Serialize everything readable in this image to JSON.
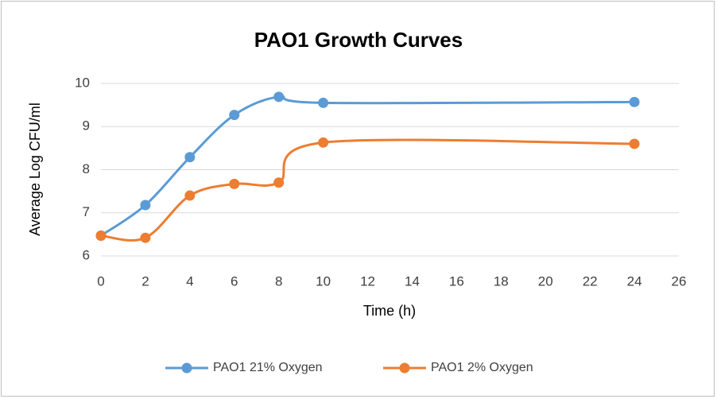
{
  "chart_data": {
    "type": "line",
    "title": "PAO1 Growth Curves",
    "xlabel": "Time (h)",
    "ylabel": "Average Log CFU/ml",
    "x": [
      0,
      2,
      4,
      6,
      8,
      10,
      24
    ],
    "series": [
      {
        "name": "PAO1 21% Oxygen",
        "color": "#5b9bd5",
        "values": [
          6.47,
          7.18,
          8.29,
          9.27,
          9.69,
          9.55,
          9.57
        ]
      },
      {
        "name": "PAO1 2% Oxygen",
        "color": "#ed7d31",
        "values": [
          6.47,
          6.42,
          7.4,
          7.67,
          7.7,
          8.63,
          8.6
        ]
      }
    ],
    "xlim": [
      0,
      26
    ],
    "xticks": [
      0,
      2,
      4,
      6,
      8,
      10,
      12,
      14,
      16,
      18,
      20,
      22,
      24,
      26
    ],
    "ylim": [
      6,
      10
    ],
    "yticks": [
      6,
      7,
      8,
      9,
      10
    ],
    "grid": true,
    "smooth": true,
    "legend": "bottom"
  }
}
